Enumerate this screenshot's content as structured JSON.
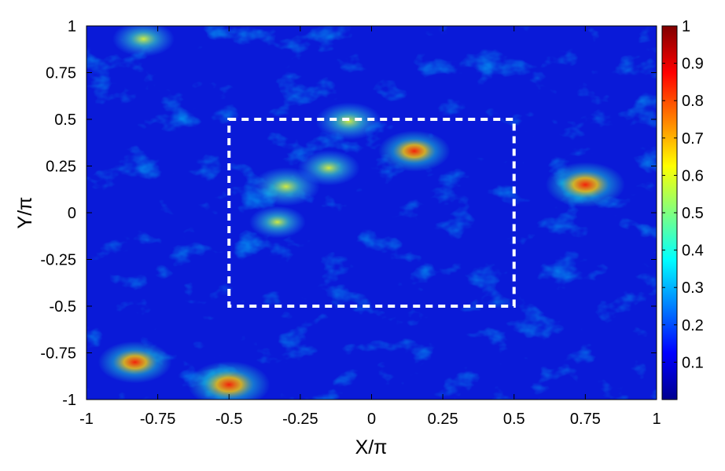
{
  "chart_data": {
    "type": "heatmap",
    "title": "",
    "xlabel": "X/π",
    "ylabel": "Y/π",
    "xlim": [
      -1,
      1
    ],
    "ylim": [
      -1,
      1
    ],
    "x_ticks": [
      -1,
      -0.75,
      -0.5,
      -0.25,
      0,
      0.25,
      0.5,
      0.75,
      1
    ],
    "x_tick_labels": [
      "-1",
      "-0.75",
      "-0.5",
      "-0.25",
      "0",
      "0.25",
      "0.5",
      "0.75",
      "1"
    ],
    "y_ticks": [
      -1,
      -0.75,
      -0.5,
      -0.25,
      0,
      0.25,
      0.5,
      0.75,
      1
    ],
    "y_tick_labels": [
      "-1",
      "-0.75",
      "-0.5",
      "-0.25",
      "0",
      "0.25",
      "0.5",
      "0.75",
      "1"
    ],
    "colorbar": {
      "colormap": "jet",
      "range": [
        0,
        1
      ],
      "ticks": [
        0.1,
        0.2,
        0.3,
        0.4,
        0.5,
        0.6,
        0.7,
        0.8,
        0.9,
        1
      ],
      "tick_labels": [
        "0.1",
        "0.2",
        "0.3",
        "0.4",
        "0.5",
        "0.6",
        "0.7",
        "0.8",
        "0.9",
        "1"
      ]
    },
    "hotspots": [
      {
        "x": 0.15,
        "y": 0.33,
        "value": 0.72
      },
      {
        "x": 0.75,
        "y": 0.15,
        "value": 0.85
      },
      {
        "x": -0.5,
        "y": -0.92,
        "value": 0.9
      },
      {
        "x": -0.83,
        "y": -0.8,
        "value": 0.75
      },
      {
        "x": -0.3,
        "y": 0.14,
        "value": 0.65
      },
      {
        "x": -0.15,
        "y": 0.24,
        "value": 0.55
      },
      {
        "x": -0.08,
        "y": 0.49,
        "value": 0.62
      },
      {
        "x": -0.8,
        "y": 0.93,
        "value": 0.55
      },
      {
        "x": -0.33,
        "y": -0.05,
        "value": 0.45
      }
    ],
    "dashed_box": {
      "x": [
        -0.5,
        0.5
      ],
      "y": [
        -0.5,
        0.5
      ],
      "color": "#ffffff"
    },
    "grid": false,
    "legend": "none"
  }
}
